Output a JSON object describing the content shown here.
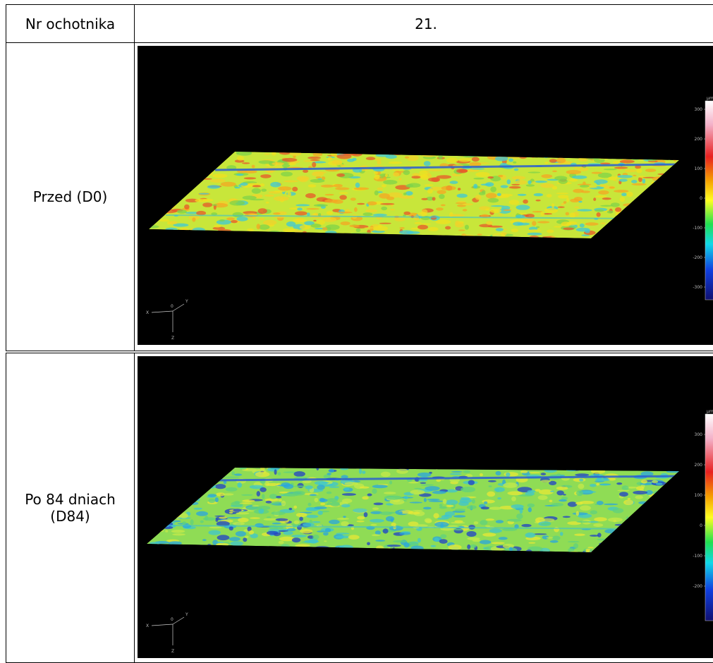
{
  "table": {
    "header": [
      "Nr ochotnika",
      "21."
    ],
    "rows": [
      {
        "label": "Przed (D0)",
        "image": {
          "unit": "µm",
          "colorbar_ticks": [
            300,
            200,
            100,
            0,
            -100,
            -200,
            -300
          ],
          "axes": [
            "X",
            "Y",
            "Z",
            "0"
          ]
        }
      },
      {
        "label": "Po 84 dniach (D84)",
        "image": {
          "unit": "µm",
          "colorbar_ticks": [
            300,
            200,
            100,
            0,
            -100,
            -200
          ],
          "axes": [
            "X",
            "Y",
            "Z",
            "0"
          ]
        }
      }
    ]
  }
}
